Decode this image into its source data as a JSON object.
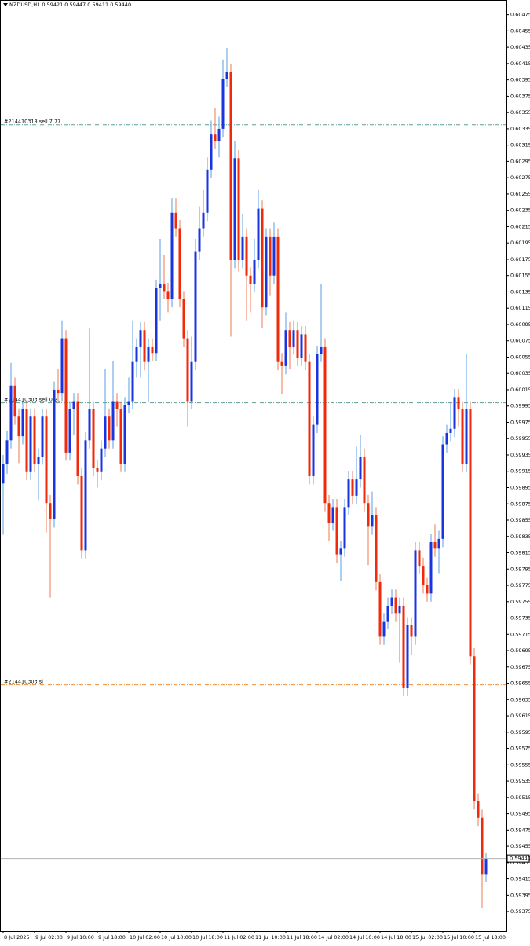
{
  "chart_data": {
    "type": "candlestick",
    "title": "NZDUSD,H1  0.59421 0.59447 0.59411 0.59440",
    "up_color": "#1a35e0",
    "down_color": "#f02a0a",
    "up_wick_color": "#5a9ee6",
    "down_wick_color": "#ef7a50",
    "ylim": [
      0.59351,
      0.60492
    ],
    "yticks": [
      0.60475,
      0.60455,
      0.60435,
      0.60415,
      0.60395,
      0.60375,
      0.60355,
      0.60335,
      0.60315,
      0.60295,
      0.60275,
      0.60255,
      0.60235,
      0.60215,
      0.60195,
      0.60175,
      0.60155,
      0.60135,
      0.60115,
      0.60095,
      0.60075,
      0.60055,
      0.60035,
      0.60015,
      0.59995,
      0.59975,
      0.59955,
      0.59935,
      0.59915,
      0.59895,
      0.59875,
      0.59855,
      0.59835,
      0.59815,
      0.59795,
      0.59775,
      0.59755,
      0.59735,
      0.59715,
      0.59695,
      0.59675,
      0.59655,
      0.59635,
      0.59615,
      0.59595,
      0.59575,
      0.59555,
      0.59535,
      0.59515,
      0.59495,
      0.59475,
      0.59455,
      0.59435,
      0.59415,
      0.59395,
      0.59375
    ],
    "categories": [
      "8 Jul 2025",
      null,
      null,
      null,
      null,
      null,
      null,
      null,
      "9 Jul 02:00",
      null,
      null,
      null,
      null,
      null,
      null,
      null,
      "9 Jul 10:00",
      null,
      null,
      null,
      null,
      null,
      null,
      null,
      "9 Jul 18:00",
      null,
      null,
      null,
      null,
      null,
      null,
      null,
      "10 Jul 02:00",
      null,
      null,
      null,
      null,
      null,
      null,
      null,
      "10 Jul 10:00",
      null,
      null,
      null,
      null,
      null,
      null,
      null,
      "10 Jul 18:00",
      null,
      null,
      null,
      null,
      null,
      null,
      null,
      "11 Jul 02:00",
      null,
      null,
      null,
      null,
      null,
      null,
      null,
      "11 Jul 10:00",
      null,
      null,
      null,
      null,
      null,
      null,
      null,
      "11 Jul 18:00",
      null,
      null,
      null,
      null,
      null,
      null,
      null,
      "14 Jul 02:00",
      null,
      null,
      null,
      null,
      null,
      null,
      null,
      "14 Jul 10:00",
      null,
      null,
      null,
      null,
      null,
      null,
      null,
      "14 Jul 18:00",
      null,
      null,
      null,
      null,
      null,
      null,
      null,
      "15 Jul 02:00",
      null,
      null,
      null,
      null,
      null,
      null,
      null,
      "15 Jul 10:00",
      null,
      null,
      null,
      null,
      null,
      null,
      null,
      "15 Jul 18:00",
      null,
      null,
      null
    ],
    "ohlc": [
      [
        0.599,
        0.59935,
        0.59837,
        0.59924
      ],
      [
        0.59924,
        0.59965,
        0.59912,
        0.59953
      ],
      [
        0.59953,
        0.60048,
        0.59943,
        0.6002
      ],
      [
        0.6002,
        0.6003,
        0.59972,
        0.59982
      ],
      [
        0.59982,
        0.59992,
        0.59925,
        0.59958
      ],
      [
        0.59958,
        0.60001,
        0.59948,
        0.59991
      ],
      [
        0.59991,
        0.60001,
        0.59904,
        0.59914
      ],
      [
        0.59914,
        0.59992,
        0.59904,
        0.59982
      ],
      [
        0.59982,
        0.59992,
        0.59914,
        0.59924
      ],
      [
        0.59924,
        0.59943,
        0.5988,
        0.59933
      ],
      [
        0.59933,
        0.59992,
        0.59923,
        0.59982
      ],
      [
        0.59982,
        0.59992,
        0.5984,
        0.59876
      ],
      [
        0.59876,
        0.59886,
        0.5976,
        0.59856
      ],
      [
        0.59856,
        0.60025,
        0.59846,
        0.60015
      ],
      [
        0.60015,
        0.6004,
        0.60001,
        0.60011
      ],
      [
        0.60011,
        0.601,
        0.60001,
        0.60078
      ],
      [
        0.60078,
        0.60088,
        0.59928,
        0.59938
      ],
      [
        0.59938,
        0.60001,
        0.59928,
        0.59991
      ],
      [
        0.59991,
        0.60011,
        0.5996,
        0.60001
      ],
      [
        0.60001,
        0.60011,
        0.59899,
        0.59909
      ],
      [
        0.59909,
        0.59919,
        0.59808,
        0.59818
      ],
      [
        0.59818,
        0.59963,
        0.59808,
        0.59953
      ],
      [
        0.59953,
        0.6009,
        0.59943,
        0.59991
      ],
      [
        0.59991,
        0.60001,
        0.59909,
        0.59919
      ],
      [
        0.59919,
        0.59929,
        0.59895,
        0.59914
      ],
      [
        0.59914,
        0.59953,
        0.59904,
        0.59943
      ],
      [
        0.59943,
        0.6004,
        0.59933,
        0.59982
      ],
      [
        0.59982,
        0.59992,
        0.59943,
        0.59953
      ],
      [
        0.59953,
        0.6005,
        0.59943,
        0.60001
      ],
      [
        0.60001,
        0.60011,
        0.5997,
        0.59991
      ],
      [
        0.59991,
        0.60001,
        0.59914,
        0.59924
      ],
      [
        0.59924,
        0.60006,
        0.59914,
        0.59996
      ],
      [
        0.59996,
        0.6003,
        0.59986,
        0.60001
      ],
      [
        0.60001,
        0.601,
        0.59991,
        0.60049
      ],
      [
        0.60049,
        0.60078,
        0.6003,
        0.60068
      ],
      [
        0.60068,
        0.60098,
        0.6003,
        0.60088
      ],
      [
        0.60088,
        0.60098,
        0.60039,
        0.60049
      ],
      [
        0.60049,
        0.60078,
        0.6,
        0.60068
      ],
      [
        0.60068,
        0.60078,
        0.6005,
        0.6006
      ],
      [
        0.6006,
        0.6015,
        0.6005,
        0.6014
      ],
      [
        0.6014,
        0.602,
        0.601,
        0.60145
      ],
      [
        0.60145,
        0.6018,
        0.60126,
        0.60136
      ],
      [
        0.60136,
        0.60146,
        0.6011,
        0.60126
      ],
      [
        0.60126,
        0.6025,
        0.60116,
        0.60232
      ],
      [
        0.60232,
        0.6025,
        0.60203,
        0.60213
      ],
      [
        0.60213,
        0.60223,
        0.60116,
        0.60126
      ],
      [
        0.60126,
        0.60136,
        0.60068,
        0.60078
      ],
      [
        0.60078,
        0.60088,
        0.5997,
        0.60001
      ],
      [
        0.60001,
        0.6008,
        0.59991,
        0.60049
      ],
      [
        0.60049,
        0.602,
        0.60039,
        0.60184
      ],
      [
        0.60184,
        0.6024,
        0.60174,
        0.60213
      ],
      [
        0.60213,
        0.6026,
        0.60203,
        0.60232
      ],
      [
        0.60232,
        0.603,
        0.60222,
        0.60285
      ],
      [
        0.60285,
        0.60345,
        0.60275,
        0.60328
      ],
      [
        0.60328,
        0.6036,
        0.6031,
        0.6032
      ],
      [
        0.6032,
        0.6035,
        0.603,
        0.60335
      ],
      [
        0.60335,
        0.6042,
        0.60325,
        0.60396
      ],
      [
        0.60396,
        0.60434,
        0.60386,
        0.60405
      ],
      [
        0.60405,
        0.60415,
        0.6008,
        0.60174
      ],
      [
        0.60174,
        0.6032,
        0.60164,
        0.60299
      ],
      [
        0.60299,
        0.60309,
        0.6016,
        0.60174
      ],
      [
        0.60174,
        0.6023,
        0.60164,
        0.60203
      ],
      [
        0.60203,
        0.60213,
        0.601,
        0.60155
      ],
      [
        0.60155,
        0.60165,
        0.6011,
        0.60145
      ],
      [
        0.60145,
        0.602,
        0.60135,
        0.60174
      ],
      [
        0.60174,
        0.6026,
        0.60164,
        0.60237
      ],
      [
        0.60237,
        0.60247,
        0.6009,
        0.60116
      ],
      [
        0.60116,
        0.60213,
        0.60106,
        0.60203
      ],
      [
        0.60203,
        0.60213,
        0.6013,
        0.60155
      ],
      [
        0.60155,
        0.6022,
        0.60145,
        0.60203
      ],
      [
        0.60203,
        0.60213,
        0.60039,
        0.60049
      ],
      [
        0.60049,
        0.6006,
        0.6001,
        0.60044
      ],
      [
        0.60044,
        0.6011,
        0.60034,
        0.60088
      ],
      [
        0.60088,
        0.60098,
        0.6004,
        0.60068
      ],
      [
        0.60068,
        0.601,
        0.60058,
        0.60088
      ],
      [
        0.60088,
        0.60098,
        0.60044,
        0.60054
      ],
      [
        0.60054,
        0.60093,
        0.60044,
        0.60083
      ],
      [
        0.60083,
        0.60093,
        0.60039,
        0.60049
      ],
      [
        0.60049,
        0.60059,
        0.59899,
        0.59909
      ],
      [
        0.59909,
        0.59982,
        0.59899,
        0.59972
      ],
      [
        0.59972,
        0.60069,
        0.59962,
        0.60059
      ],
      [
        0.60059,
        0.60145,
        0.60049,
        0.60068
      ],
      [
        0.60068,
        0.60078,
        0.59866,
        0.59876
      ],
      [
        0.59876,
        0.59886,
        0.5983,
        0.59852
      ],
      [
        0.59852,
        0.59881,
        0.59842,
        0.59871
      ],
      [
        0.59871,
        0.59881,
        0.59803,
        0.59813
      ],
      [
        0.59813,
        0.5983,
        0.5978,
        0.5982
      ],
      [
        0.5982,
        0.59881,
        0.5981,
        0.59871
      ],
      [
        0.59871,
        0.59915,
        0.59861,
        0.59905
      ],
      [
        0.59905,
        0.59915,
        0.59875,
        0.59885
      ],
      [
        0.59885,
        0.59945,
        0.59875,
        0.59905
      ],
      [
        0.59905,
        0.5996,
        0.59895,
        0.59933
      ],
      [
        0.59933,
        0.59943,
        0.59866,
        0.59876
      ],
      [
        0.59876,
        0.59886,
        0.598,
        0.59847
      ],
      [
        0.59847,
        0.5989,
        0.59837,
        0.59861
      ],
      [
        0.59861,
        0.59871,
        0.59769,
        0.59779
      ],
      [
        0.59779,
        0.59789,
        0.59702,
        0.59712
      ],
      [
        0.59712,
        0.59741,
        0.59702,
        0.59731
      ],
      [
        0.59731,
        0.5976,
        0.59721,
        0.5975
      ],
      [
        0.5975,
        0.5977,
        0.5974,
        0.5976
      ],
      [
        0.5976,
        0.5977,
        0.59731,
        0.59741
      ],
      [
        0.59741,
        0.5976,
        0.5968,
        0.5975
      ],
      [
        0.5975,
        0.5976,
        0.59639,
        0.59649
      ],
      [
        0.59649,
        0.59736,
        0.59639,
        0.59726
      ],
      [
        0.59726,
        0.59736,
        0.5969,
        0.59712
      ],
      [
        0.59712,
        0.59828,
        0.59702,
        0.59818
      ],
      [
        0.59818,
        0.59828,
        0.59789,
        0.59799
      ],
      [
        0.59799,
        0.59809,
        0.59765,
        0.59775
      ],
      [
        0.59775,
        0.59785,
        0.59755,
        0.59765
      ],
      [
        0.59765,
        0.59838,
        0.59755,
        0.59828
      ],
      [
        0.59828,
        0.5985,
        0.5981,
        0.5982
      ],
      [
        0.5982,
        0.59842,
        0.5979,
        0.59832
      ],
      [
        0.59832,
        0.59958,
        0.59822,
        0.59948
      ],
      [
        0.59948,
        0.59972,
        0.59938,
        0.59962
      ],
      [
        0.59962,
        0.6,
        0.59952,
        0.59967
      ],
      [
        0.59967,
        0.60016,
        0.59957,
        0.60006
      ],
      [
        0.60006,
        0.60016,
        0.5997,
        0.59991
      ],
      [
        0.59991,
        0.60001,
        0.59914,
        0.59924
      ],
      [
        0.59924,
        0.60059,
        0.59914,
        0.59991
      ],
      [
        0.59991,
        0.60001,
        0.59678,
        0.59688
      ],
      [
        0.59688,
        0.59698,
        0.595,
        0.5951
      ],
      [
        0.5951,
        0.5952,
        0.5948,
        0.5949
      ],
      [
        0.5949,
        0.595,
        0.5938,
        0.59421
      ],
      [
        0.59421,
        0.59447,
        0.59411,
        0.5944
      ]
    ],
    "levels": [
      {
        "label": "#214410318 sell 7.77",
        "value": 0.6034,
        "color": "#5f9f95"
      },
      {
        "label": "#214410303 sell 0.20",
        "value": 0.59999,
        "color": "#5f9f95"
      },
      {
        "label": "#214410303 sl",
        "value": 0.59653,
        "color": "#f0903a"
      }
    ],
    "last_price": {
      "value": 0.5944,
      "label": "0.59440"
    }
  }
}
